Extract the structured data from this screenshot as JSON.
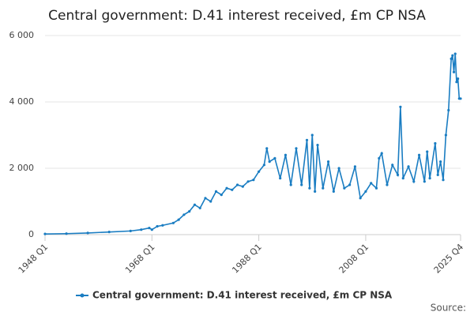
{
  "chart_data": {
    "type": "line",
    "title": "Central government: D.41 interest received, £m CP NSA",
    "source": "Source:",
    "x": [
      "1948 Q1",
      "1952 Q1",
      "1956 Q1",
      "1960 Q1",
      "1964 Q1",
      "1966 Q1",
      "1967 Q3",
      "1968 Q1",
      "1969 Q1",
      "1970 Q1",
      "1972 Q1",
      "1973 Q1",
      "1974 Q1",
      "1975 Q1",
      "1976 Q1",
      "1977 Q1",
      "1978 Q1",
      "1979 Q1",
      "1980 Q1",
      "1981 Q1",
      "1982 Q1",
      "1983 Q1",
      "1984 Q1",
      "1985 Q1",
      "1986 Q1",
      "1987 Q1",
      "1988 Q1",
      "1989 Q1",
      "1989 Q3",
      "1990 Q1",
      "1991 Q1",
      "1992 Q1",
      "1993 Q1",
      "1994 Q1",
      "1995 Q1",
      "1996 Q1",
      "1997 Q1",
      "1997 Q3",
      "1998 Q1",
      "1998 Q3",
      "1999 Q1",
      "2000 Q1",
      "2001 Q1",
      "2002 Q1",
      "2003 Q1",
      "2004 Q1",
      "2005 Q1",
      "2006 Q1",
      "2007 Q1",
      "2008 Q1",
      "2009 Q1",
      "2010 Q1",
      "2010 Q3",
      "2011 Q1",
      "2012 Q1",
      "2013 Q1",
      "2014 Q1",
      "2014 Q3",
      "2015 Q1",
      "2016 Q1",
      "2017 Q1",
      "2018 Q1",
      "2019 Q1",
      "2019 Q3",
      "2020 Q1",
      "2021 Q1",
      "2021 Q3",
      "2022 Q1",
      "2022 Q3",
      "2023 Q1",
      "2023 Q3",
      "2024 Q1",
      "2024 Q2",
      "2024 Q3",
      "2024 Q4",
      "2025 Q1",
      "2025 Q2",
      "2025 Q3",
      "2025 Q4"
    ],
    "series": [
      {
        "name": "Central government: D.41 interest received, £m CP NSA",
        "color": "#1a7dc2",
        "values": [
          20,
          30,
          50,
          80,
          110,
          150,
          200,
          150,
          250,
          280,
          350,
          450,
          600,
          700,
          900,
          800,
          1100,
          1000,
          1300,
          1200,
          1400,
          1350,
          1500,
          1450,
          1600,
          1650,
          1900,
          2100,
          2600,
          2200,
          2300,
          1700,
          2400,
          1500,
          2600,
          1500,
          2850,
          1400,
          3000,
          1300,
          2700,
          1400,
          2200,
          1300,
          2000,
          1400,
          1500,
          2050,
          1100,
          1300,
          1550,
          1400,
          2300,
          2450,
          1500,
          2100,
          1800,
          3850,
          1700,
          2050,
          1600,
          2400,
          1600,
          2500,
          1700,
          2750,
          1800,
          2200,
          1650,
          3000,
          3750,
          5300,
          5400,
          4900,
          5450,
          4600,
          4700,
          4100,
          4100
        ]
      }
    ],
    "xticks": [
      "1948 Q1",
      "1968 Q1",
      "1988 Q1",
      "2008 Q1",
      "2025 Q4"
    ],
    "ylim": [
      0,
      6000
    ],
    "yticks": [
      0,
      {
        "value": 2000,
        "label": "2 000"
      },
      {
        "value": 4000,
        "label": "4 000"
      },
      {
        "value": 6000,
        "label": "6 000"
      }
    ],
    "grid": true,
    "legend": "bottom"
  }
}
